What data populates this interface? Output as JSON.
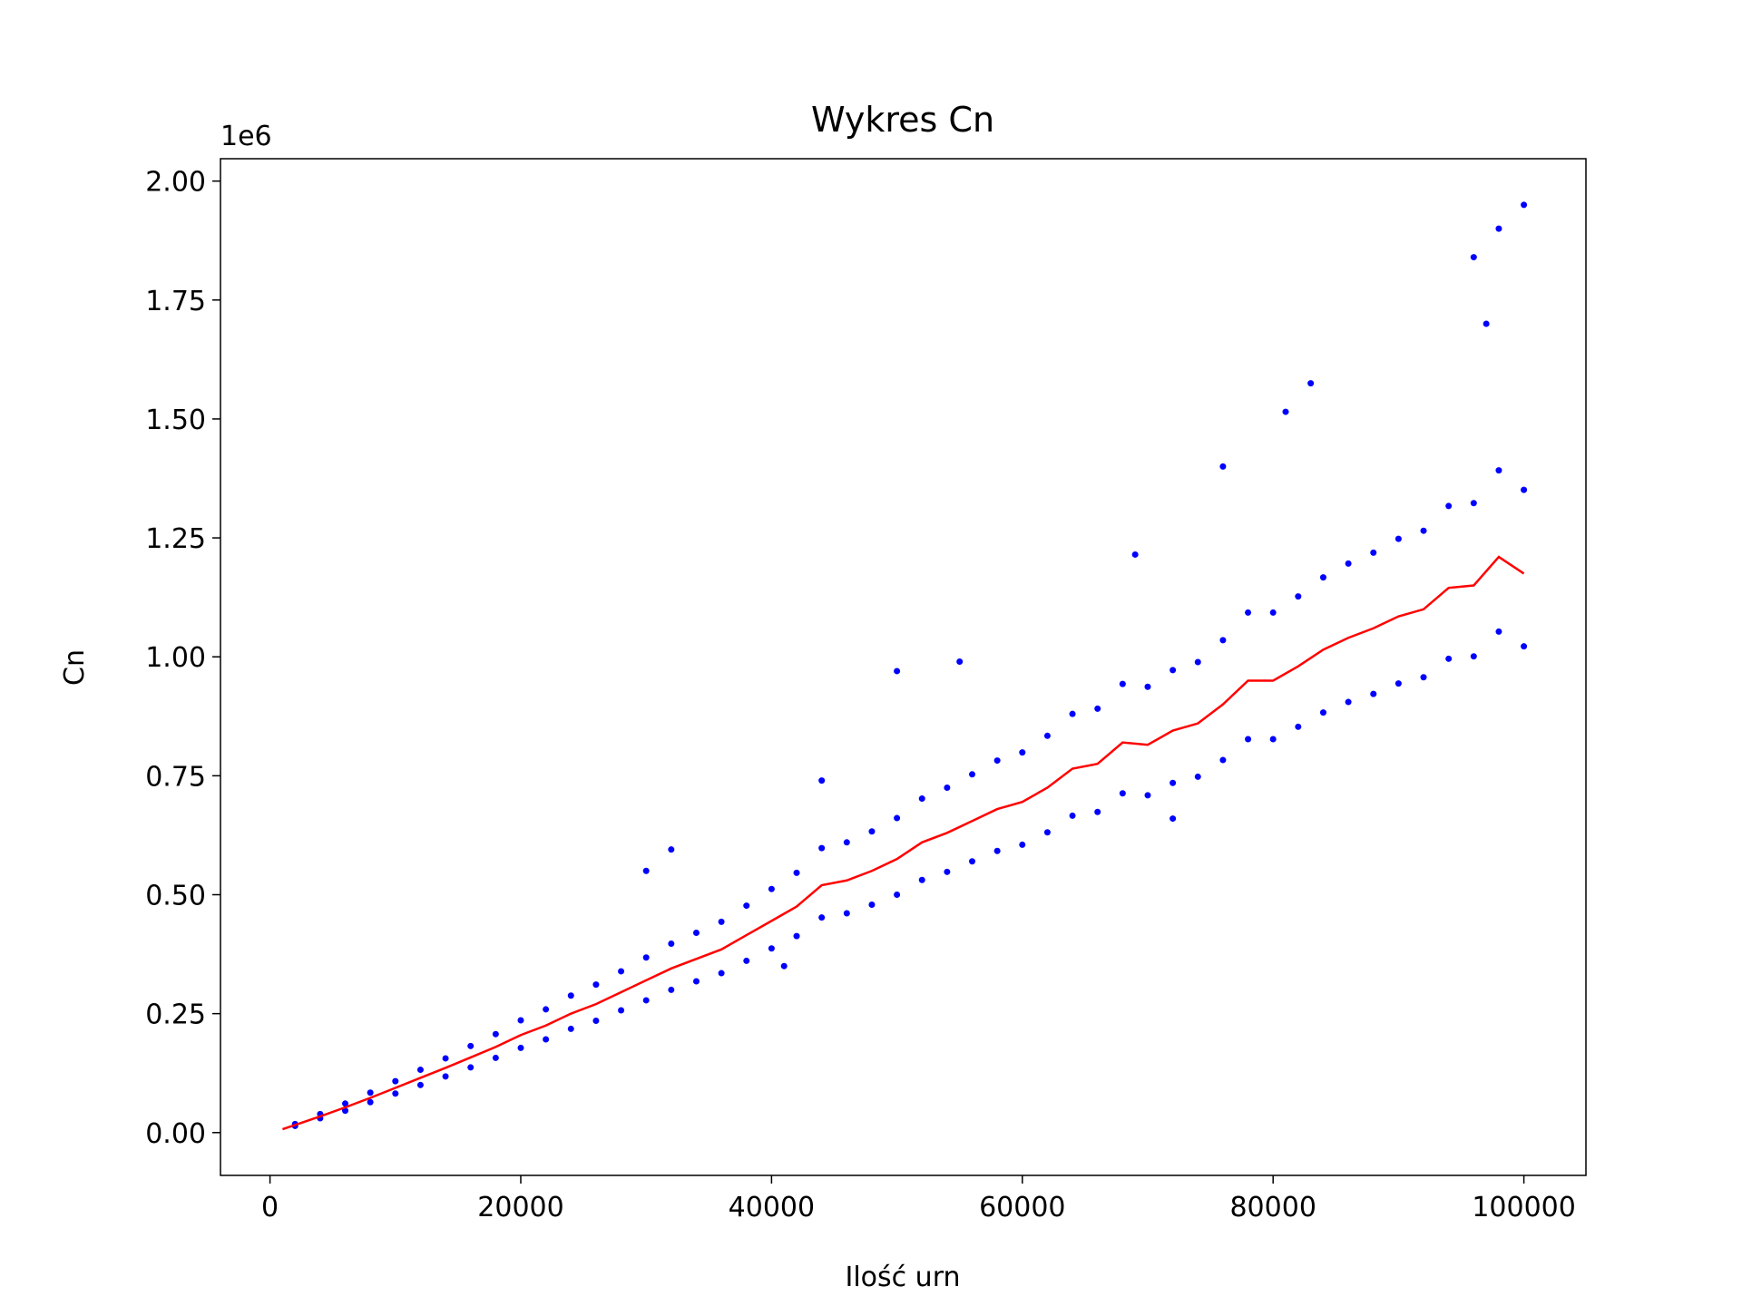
{
  "chart_data": {
    "type": "scatter",
    "title": "Wykres Cn",
    "x_label": "Ilość urn",
    "y_label": "Cn",
    "y_offset_label": "1e6",
    "xlim": [
      -3950,
      104950
    ],
    "ylim": [
      -90000,
      2047000
    ],
    "xticks": [
      0,
      20000,
      40000,
      60000,
      80000,
      100000
    ],
    "yticks": [
      {
        "value": 0,
        "label": "0.00"
      },
      {
        "value": 250000,
        "label": "0.25"
      },
      {
        "value": 500000,
        "label": "0.50"
      },
      {
        "value": 750000,
        "label": "0.75"
      },
      {
        "value": 1000000,
        "label": "1.00"
      },
      {
        "value": 1250000,
        "label": "1.25"
      },
      {
        "value": 1500000,
        "label": "1.50"
      },
      {
        "value": 1750000,
        "label": "1.75"
      },
      {
        "value": 2000000,
        "label": "2.00"
      }
    ],
    "scatter": {
      "color": "#0000ff",
      "x": [
        2000,
        4000,
        6000,
        8000,
        10000,
        12000,
        14000,
        16000,
        18000,
        20000,
        22000,
        24000,
        26000,
        28000,
        30000,
        32000,
        34000,
        36000,
        38000,
        40000,
        42000,
        44000,
        46000,
        48000,
        50000,
        52000,
        54000,
        56000,
        58000,
        60000,
        62000,
        64000,
        66000,
        68000,
        70000,
        72000,
        74000,
        76000,
        78000,
        80000,
        82000,
        84000,
        86000,
        88000,
        90000,
        92000,
        94000,
        96000,
        98000,
        100000,
        2000,
        4000,
        6000,
        8000,
        10000,
        12000,
        14000,
        16000,
        18000,
        20000,
        22000,
        24000,
        26000,
        28000,
        30000,
        32000,
        34000,
        36000,
        38000,
        40000,
        42000,
        44000,
        46000,
        48000,
        50000,
        52000,
        54000,
        56000,
        58000,
        60000,
        62000,
        64000,
        66000,
        68000,
        70000,
        72000,
        74000,
        76000,
        78000,
        80000,
        82000,
        84000,
        86000,
        88000,
        90000,
        92000,
        94000,
        96000,
        98000,
        100000,
        98000,
        100000,
        96000,
        97000,
        83000,
        76000,
        81000,
        30000,
        32000,
        44000,
        50000,
        55000,
        69000,
        41000,
        72000
      ],
      "y": [
        14000,
        30000,
        46000,
        64000,
        82000,
        100000,
        118000,
        137000,
        157000,
        178000,
        196000,
        218000,
        235000,
        257000,
        278000,
        300000,
        318000,
        335000,
        361000,
        387000,
        413000,
        452000,
        461000,
        479000,
        500000,
        531000,
        548000,
        570000,
        592000,
        605000,
        631000,
        666000,
        674000,
        713000,
        709000,
        735000,
        748000,
        783000,
        827000,
        827000,
        853000,
        883000,
        905000,
        922000,
        944000,
        957000,
        996000,
        1001000,
        1053000,
        1022000,
        18000,
        39000,
        61000,
        84000,
        108000,
        132000,
        156000,
        182000,
        207000,
        236000,
        259000,
        288000,
        311000,
        339000,
        368000,
        397000,
        420000,
        443000,
        477000,
        512000,
        546000,
        598000,
        610000,
        633000,
        661000,
        702000,
        725000,
        753000,
        782000,
        799000,
        834000,
        880000,
        891000,
        943000,
        937000,
        972000,
        989000,
        1035000,
        1093000,
        1093000,
        1127000,
        1167000,
        1196000,
        1219000,
        1248000,
        1265000,
        1317000,
        1323000,
        1392000,
        1351000,
        1900000,
        1950000,
        1840000,
        1700000,
        1575000,
        1400000,
        1515000,
        550000,
        595000,
        740000,
        970000,
        990000,
        1215000,
        350000,
        660000
      ]
    },
    "line": {
      "color": "#ff0000",
      "x": [
        1000,
        2000,
        4000,
        6000,
        8000,
        10000,
        12000,
        14000,
        16000,
        18000,
        20000,
        22000,
        24000,
        26000,
        28000,
        30000,
        32000,
        34000,
        36000,
        38000,
        40000,
        42000,
        44000,
        46000,
        48000,
        50000,
        52000,
        54000,
        56000,
        58000,
        60000,
        62000,
        64000,
        66000,
        68000,
        70000,
        72000,
        74000,
        76000,
        78000,
        80000,
        82000,
        84000,
        86000,
        88000,
        90000,
        92000,
        94000,
        96000,
        98000,
        100000
      ],
      "values": [
        7000,
        16000,
        34000,
        53000,
        73000,
        94000,
        115000,
        136000,
        158000,
        180000,
        205000,
        225000,
        250000,
        270000,
        295000,
        320000,
        345000,
        365000,
        385000,
        415000,
        445000,
        475000,
        520000,
        530000,
        550000,
        575000,
        610000,
        630000,
        655000,
        680000,
        695000,
        725000,
        765000,
        775000,
        820000,
        815000,
        845000,
        860000,
        900000,
        950000,
        950000,
        980000,
        1015000,
        1040000,
        1060000,
        1085000,
        1100000,
        1145000,
        1150000,
        1210000,
        1175000
      ]
    }
  }
}
